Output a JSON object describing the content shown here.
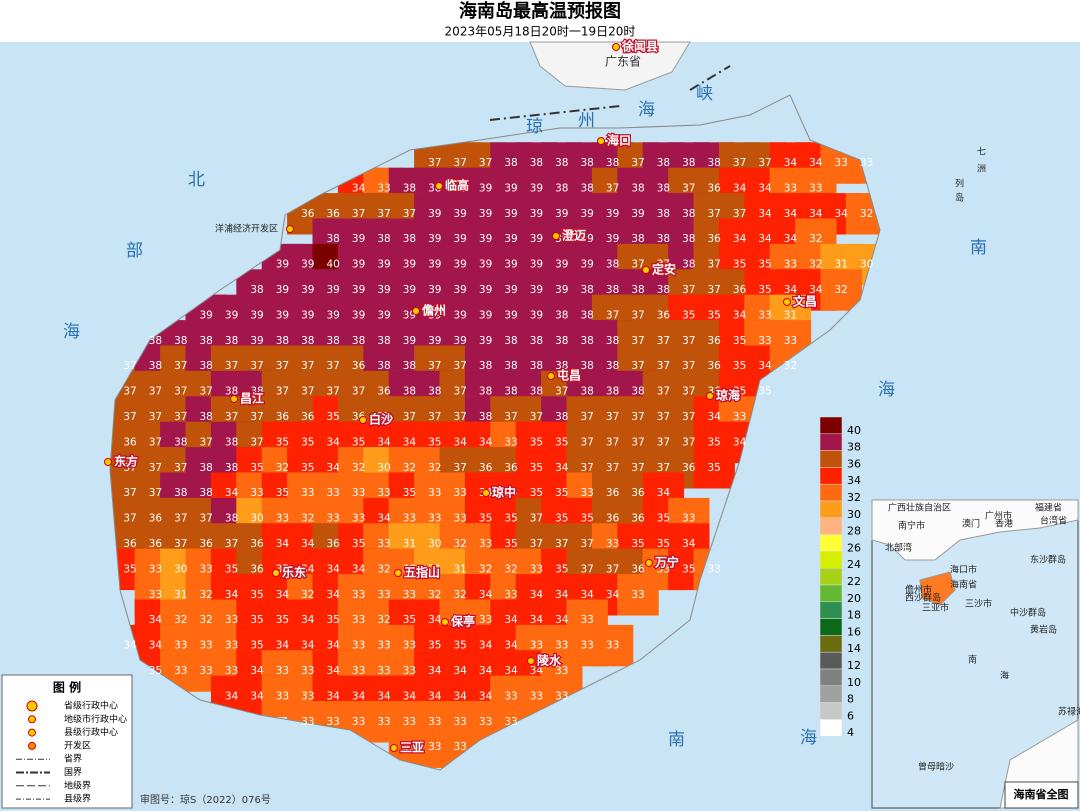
{
  "header": {
    "title": "海南岛最高温预报图",
    "subtitle": "2023年05月18日20时一19日20时"
  },
  "map_labels": {
    "cities": [
      "徐闻县",
      "海口",
      "临高",
      "澄迈",
      "定安",
      "文昌",
      "儋州",
      "屯昌",
      "琼海",
      "昌江",
      "白沙",
      "东方",
      "琼中",
      "万宁",
      "乐东",
      "五指山",
      "保亭",
      "陵水",
      "三亚",
      "洋浦经济开发区"
    ],
    "sea": [
      "北",
      "部",
      "海",
      "南",
      "海",
      "南",
      "海",
      "琼",
      "州",
      "海",
      "峡",
      "七",
      "洲",
      "列",
      "岛"
    ],
    "province": "广东省"
  },
  "temperature_grid": {
    "rows": [
      [
        null,
        null,
        null,
        null,
        null,
        null,
        null,
        null,
        null,
        null,
        null,
        null,
        37,
        37,
        37,
        38,
        38,
        38,
        38,
        38,
        37,
        38,
        38,
        38,
        37,
        37,
        34,
        34,
        33,
        33
      ],
      [
        null,
        null,
        null,
        null,
        null,
        null,
        null,
        null,
        null,
        34,
        33,
        38,
        38,
        39,
        39,
        39,
        39,
        38,
        38,
        37,
        38,
        38,
        37,
        36,
        34,
        34,
        33,
        33
      ],
      [
        null,
        null,
        null,
        null,
        null,
        null,
        null,
        36,
        36,
        37,
        37,
        37,
        39,
        39,
        39,
        39,
        39,
        39,
        39,
        39,
        39,
        38,
        38,
        37,
        37,
        34,
        34,
        34,
        34,
        32
      ],
      [
        null,
        null,
        null,
        null,
        null,
        null,
        null,
        null,
        38,
        39,
        38,
        38,
        39,
        39,
        39,
        39,
        39,
        39,
        39,
        39,
        38,
        38,
        38,
        36,
        34,
        34,
        34,
        32
      ],
      [
        null,
        null,
        null,
        null,
        null,
        null,
        39,
        39,
        40,
        39,
        39,
        39,
        39,
        39,
        39,
        39,
        39,
        39,
        39,
        38,
        37,
        37,
        38,
        37,
        35,
        35,
        33,
        32,
        31,
        30
      ],
      [
        null,
        null,
        null,
        null,
        null,
        38,
        39,
        39,
        39,
        39,
        39,
        39,
        39,
        39,
        39,
        39,
        39,
        39,
        38,
        38,
        38,
        38,
        37,
        37,
        36,
        35,
        34,
        34,
        32
      ],
      [
        null,
        null,
        null,
        39,
        39,
        39,
        39,
        39,
        39,
        39,
        39,
        39,
        39,
        39,
        39,
        39,
        39,
        38,
        38,
        37,
        37,
        36,
        35,
        35,
        34,
        33,
        31
      ],
      [
        null,
        38,
        38,
        38,
        38,
        39,
        38,
        38,
        38,
        38,
        38,
        39,
        39,
        39,
        39,
        38,
        38,
        38,
        38,
        38,
        37,
        37,
        37,
        36,
        35,
        33,
        33
      ],
      [
        37,
        38,
        37,
        38,
        37,
        37,
        37,
        37,
        37,
        36,
        38,
        38,
        37,
        37,
        38,
        38,
        38,
        38,
        38,
        38,
        37,
        37,
        37,
        36,
        35,
        34,
        32
      ],
      [
        37,
        37,
        37,
        37,
        38,
        38,
        37,
        37,
        37,
        37,
        36,
        38,
        38,
        37,
        38,
        38,
        38,
        37,
        38,
        38,
        38,
        37,
        37,
        36,
        35,
        35
      ],
      [
        37,
        37,
        37,
        38,
        37,
        37,
        36,
        36,
        35,
        36,
        37,
        37,
        37,
        37,
        38,
        37,
        37,
        38,
        37,
        37,
        37,
        37,
        37,
        34,
        33
      ],
      [
        36,
        37,
        38,
        37,
        38,
        37,
        35,
        35,
        34,
        35,
        34,
        34,
        35,
        34,
        34,
        33,
        35,
        35,
        37,
        37,
        37,
        37,
        37,
        35,
        34
      ],
      [
        37,
        37,
        37,
        38,
        38,
        35,
        32,
        35,
        34,
        32,
        30,
        32,
        32,
        37,
        36,
        36,
        35,
        34,
        37,
        37,
        37,
        37,
        36,
        35
      ],
      [
        37,
        37,
        38,
        38,
        34,
        33,
        35,
        33,
        33,
        33,
        33,
        35,
        33,
        33,
        34,
        34,
        35,
        35,
        33,
        36,
        36,
        34
      ],
      [
        37,
        36,
        37,
        37,
        38,
        30,
        33,
        32,
        33,
        33,
        34,
        33,
        33,
        33,
        35,
        35,
        37,
        35,
        35,
        36,
        36,
        35,
        33
      ],
      [
        36,
        36,
        37,
        36,
        37,
        36,
        34,
        34,
        36,
        35,
        33,
        31,
        30,
        32,
        33,
        35,
        37,
        37,
        37,
        33,
        35,
        35,
        34
      ],
      [
        35,
        33,
        30,
        33,
        35,
        36,
        35,
        34,
        34,
        34,
        32,
        33,
        31,
        31,
        32,
        32,
        33,
        35,
        37,
        37,
        36,
        33,
        35,
        33
      ],
      [
        null,
        33,
        31,
        32,
        34,
        35,
        34,
        32,
        34,
        33,
        33,
        33,
        32,
        32,
        34,
        33,
        34,
        34,
        34,
        34,
        33
      ],
      [
        null,
        34,
        32,
        32,
        33,
        35,
        35,
        34,
        35,
        33,
        32,
        35,
        34,
        33,
        33,
        34,
        34,
        34,
        33
      ],
      [
        34,
        34,
        33,
        33,
        33,
        35,
        34,
        34,
        34,
        33,
        33,
        33,
        35,
        35,
        34,
        34,
        33,
        33,
        33,
        33
      ],
      [
        null,
        35,
        33,
        33,
        33,
        34,
        33,
        33,
        34,
        33,
        33,
        33,
        34,
        34,
        34,
        34,
        34,
        33
      ],
      [
        null,
        null,
        null,
        null,
        34,
        34,
        33,
        33,
        34,
        34,
        34,
        34,
        34,
        34,
        34,
        33,
        33,
        33
      ],
      [
        null,
        null,
        null,
        null,
        null,
        null,
        null,
        33,
        33,
        33,
        33,
        33,
        33,
        33,
        33,
        33
      ],
      [
        null,
        null,
        null,
        null,
        null,
        null,
        null,
        null,
        null,
        null,
        null,
        33,
        33,
        33
      ]
    ]
  },
  "color_scale": {
    "ticks": [
      40,
      38,
      36,
      34,
      32,
      30,
      28,
      26,
      24,
      22,
      20,
      18,
      16,
      14,
      12,
      10,
      8,
      6,
      4
    ],
    "colors": [
      "#7d0000",
      "#a3164b",
      "#c0520a",
      "#ff2200",
      "#ff6a10",
      "#ff9d1a",
      "#ffb380",
      "#ffff33",
      "#d4f000",
      "#a6d21a",
      "#64b832",
      "#2e8f50",
      "#0a6a1a",
      "#6b6b10",
      "#5a5a5a",
      "#808080",
      "#a0a0a0",
      "#c8c8c8",
      "#ffffff"
    ]
  },
  "legend": {
    "title": "图 例",
    "items": [
      "省级行政中心",
      "地级市行政中心",
      "县级行政中心",
      "开发区",
      "省界",
      "国界",
      "地级界",
      "县级界"
    ]
  },
  "footer": "审图号：琼S（2022）076号",
  "inset": {
    "title": "海南省全图",
    "labels": [
      "广西壮族自治区",
      "福建省",
      "南宁市",
      "广州市",
      "澳门",
      "香港",
      "台湾省",
      "北部湾",
      "海口市",
      "海南省",
      "儋州市",
      "三亚市",
      "三沙市",
      "东沙群岛",
      "西沙群岛",
      "中沙群岛",
      "黄岩岛",
      "南",
      "海",
      "苏禄海",
      "曾母暗沙"
    ]
  }
}
